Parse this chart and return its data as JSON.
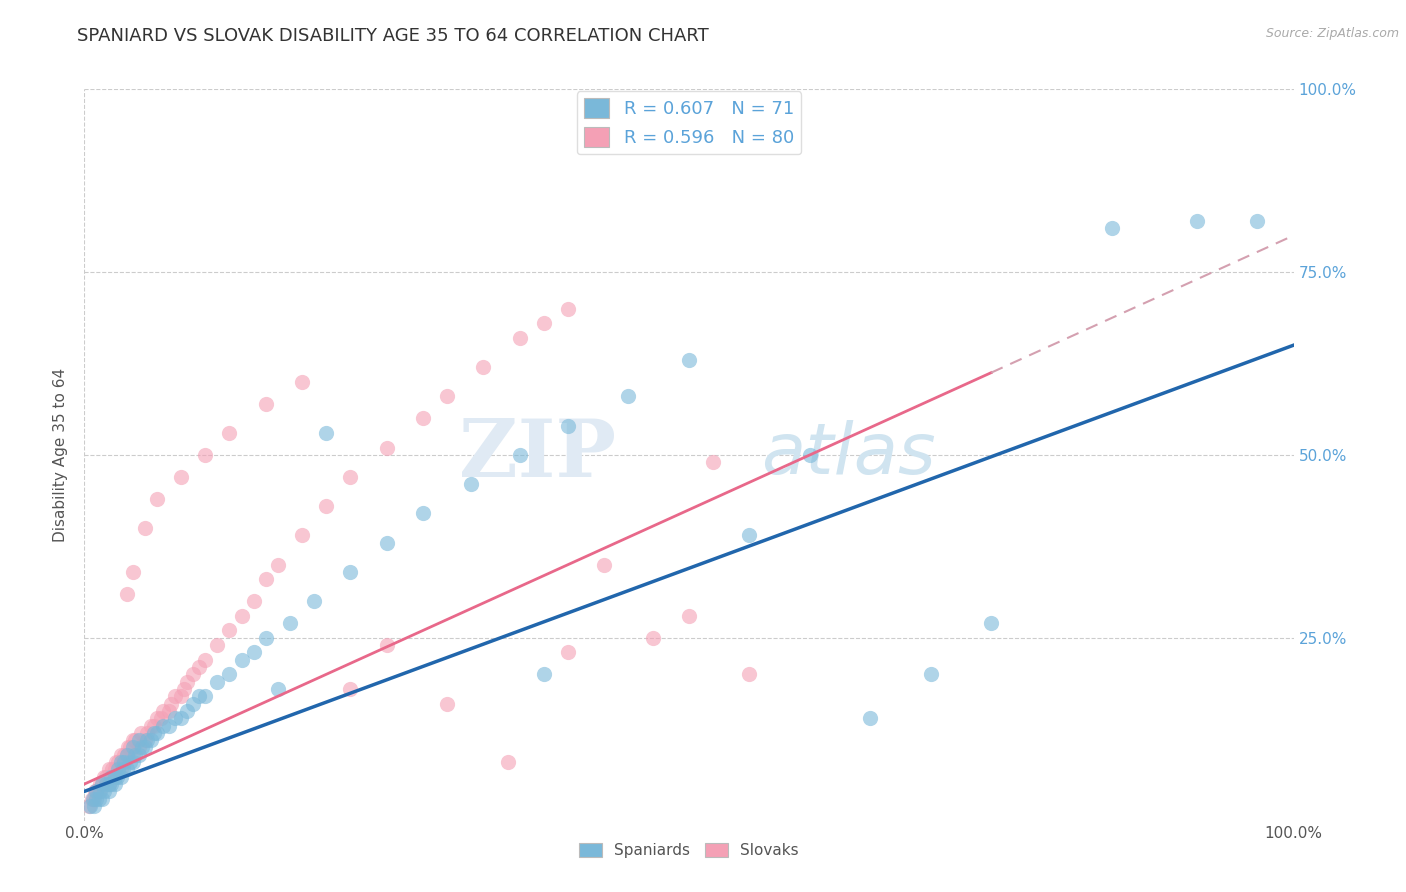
{
  "title": "SPANIARD VS SLOVAK DISABILITY AGE 35 TO 64 CORRELATION CHART",
  "source_text": "Source: ZipAtlas.com",
  "ylabel": "Disability Age 35 to 64",
  "xlim": [
    0.0,
    1.0
  ],
  "ylim": [
    0.0,
    1.0
  ],
  "series1_color": "#7ab8d9",
  "series2_color": "#f4a0b5",
  "series1_label": "Spaniards",
  "series2_label": "Slovaks",
  "r1": 0.607,
  "n1": 71,
  "r2": 0.596,
  "n2": 80,
  "line1_color": "#2166ac",
  "line2_color": "#e8688a",
  "line2_dash_color": "#d4a0b0",
  "ytick_color": "#5ba3d9",
  "spaniards_x": [
    0.005,
    0.007,
    0.008,
    0.01,
    0.01,
    0.012,
    0.013,
    0.015,
    0.015,
    0.016,
    0.018,
    0.02,
    0.02,
    0.022,
    0.022,
    0.025,
    0.025,
    0.027,
    0.028,
    0.03,
    0.03,
    0.032,
    0.033,
    0.035,
    0.035,
    0.038,
    0.04,
    0.04,
    0.042,
    0.045,
    0.045,
    0.048,
    0.05,
    0.052,
    0.055,
    0.058,
    0.06,
    0.065,
    0.07,
    0.075,
    0.08,
    0.085,
    0.09,
    0.095,
    0.1,
    0.11,
    0.12,
    0.13,
    0.14,
    0.15,
    0.17,
    0.19,
    0.22,
    0.25,
    0.28,
    0.32,
    0.36,
    0.4,
    0.45,
    0.5,
    0.16,
    0.2,
    0.38,
    0.55,
    0.6,
    0.65,
    0.7,
    0.75,
    0.85,
    0.92,
    0.97
  ],
  "spaniards_y": [
    0.02,
    0.03,
    0.02,
    0.03,
    0.04,
    0.03,
    0.04,
    0.05,
    0.03,
    0.04,
    0.05,
    0.04,
    0.05,
    0.05,
    0.06,
    0.05,
    0.06,
    0.06,
    0.07,
    0.06,
    0.08,
    0.07,
    0.08,
    0.07,
    0.09,
    0.08,
    0.08,
    0.1,
    0.09,
    0.09,
    0.11,
    0.1,
    0.1,
    0.11,
    0.11,
    0.12,
    0.12,
    0.13,
    0.13,
    0.14,
    0.14,
    0.15,
    0.16,
    0.17,
    0.17,
    0.19,
    0.2,
    0.22,
    0.23,
    0.25,
    0.27,
    0.3,
    0.34,
    0.38,
    0.42,
    0.46,
    0.5,
    0.54,
    0.58,
    0.63,
    0.18,
    0.53,
    0.2,
    0.39,
    0.5,
    0.14,
    0.2,
    0.27,
    0.81,
    0.82,
    0.82
  ],
  "slovaks_x": [
    0.004,
    0.006,
    0.008,
    0.009,
    0.01,
    0.012,
    0.013,
    0.015,
    0.016,
    0.018,
    0.02,
    0.02,
    0.022,
    0.023,
    0.025,
    0.026,
    0.028,
    0.03,
    0.03,
    0.032,
    0.033,
    0.035,
    0.036,
    0.038,
    0.04,
    0.04,
    0.042,
    0.045,
    0.047,
    0.05,
    0.052,
    0.055,
    0.058,
    0.06,
    0.063,
    0.065,
    0.07,
    0.072,
    0.075,
    0.08,
    0.082,
    0.085,
    0.09,
    0.095,
    0.1,
    0.11,
    0.12,
    0.13,
    0.14,
    0.15,
    0.16,
    0.18,
    0.2,
    0.22,
    0.25,
    0.28,
    0.3,
    0.33,
    0.36,
    0.4,
    0.035,
    0.04,
    0.05,
    0.06,
    0.08,
    0.1,
    0.12,
    0.15,
    0.18,
    0.22,
    0.25,
    0.3,
    0.35,
    0.4,
    0.43,
    0.47,
    0.5,
    0.55,
    0.38,
    0.52
  ],
  "slovaks_y": [
    0.02,
    0.03,
    0.03,
    0.04,
    0.04,
    0.04,
    0.05,
    0.05,
    0.06,
    0.06,
    0.05,
    0.07,
    0.06,
    0.07,
    0.07,
    0.08,
    0.08,
    0.07,
    0.09,
    0.08,
    0.09,
    0.09,
    0.1,
    0.1,
    0.09,
    0.11,
    0.11,
    0.1,
    0.12,
    0.11,
    0.12,
    0.13,
    0.13,
    0.14,
    0.14,
    0.15,
    0.15,
    0.16,
    0.17,
    0.17,
    0.18,
    0.19,
    0.2,
    0.21,
    0.22,
    0.24,
    0.26,
    0.28,
    0.3,
    0.33,
    0.35,
    0.39,
    0.43,
    0.47,
    0.51,
    0.55,
    0.58,
    0.62,
    0.66,
    0.7,
    0.31,
    0.34,
    0.4,
    0.44,
    0.47,
    0.5,
    0.53,
    0.57,
    0.6,
    0.18,
    0.24,
    0.16,
    0.08,
    0.23,
    0.35,
    0.25,
    0.28,
    0.2,
    0.68,
    0.49
  ],
  "line1_x_start": 0.0,
  "line1_y_start": 0.04,
  "line1_x_end": 1.0,
  "line1_y_end": 0.65,
  "line2_solid_x_end": 0.75,
  "line2_x_start": 0.0,
  "line2_y_start": 0.05,
  "line2_x_end": 1.0,
  "line2_y_end": 0.8
}
